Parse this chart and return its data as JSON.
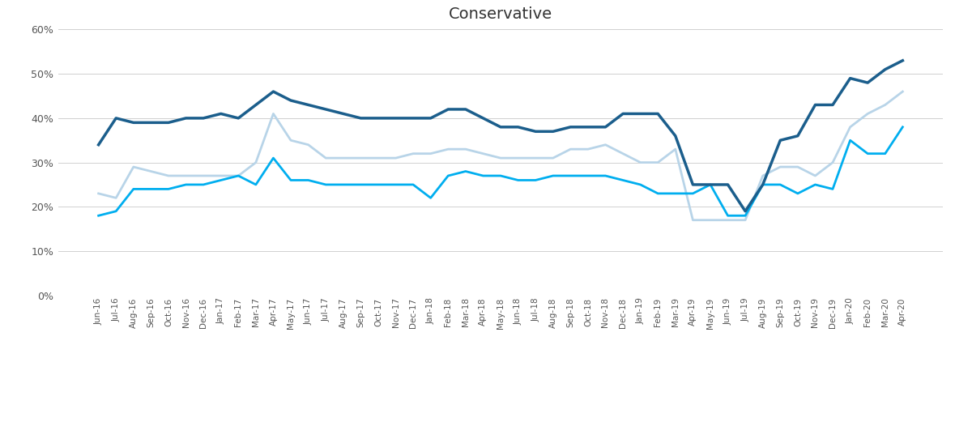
{
  "title": "Conservative",
  "labels": [
    "Jun-16",
    "Jul-16",
    "Aug-16",
    "Sep-16",
    "Oct-16",
    "Nov-16",
    "Dec-16",
    "Jan-17",
    "Feb-17",
    "Mar-17",
    "Apr-17",
    "May-17",
    "Jun-17",
    "Jul-17",
    "Aug-17",
    "Sep-17",
    "Oct-17",
    "Nov-17",
    "Dec-17",
    "Jan-18",
    "Feb-18",
    "Mar-18",
    "Apr-18",
    "May-18",
    "Jun-18",
    "Jul-18",
    "Aug-18",
    "Sep-18",
    "Oct-18",
    "Nov-18",
    "Dec-18",
    "Jan-19",
    "Feb-19",
    "Mar-19",
    "Apr-19",
    "May-19",
    "Jun-19",
    "Jul-19",
    "Aug-19",
    "Sep-19",
    "Oct-19",
    "Nov-19",
    "Dec-19",
    "Jan-20",
    "Feb-20",
    "Mar-20",
    "Apr-20"
  ],
  "uk_polling": [
    34,
    40,
    39,
    39,
    39,
    40,
    40,
    41,
    40,
    43,
    46,
    44,
    43,
    42,
    41,
    40,
    40,
    40,
    40,
    40,
    42,
    42,
    40,
    38,
    38,
    37,
    37,
    38,
    38,
    38,
    41,
    41,
    41,
    36,
    25,
    25,
    25,
    19,
    25,
    35,
    36,
    43,
    43,
    49,
    48,
    51,
    53
  ],
  "senedd_welsh": [
    18,
    19,
    24,
    24,
    24,
    25,
    25,
    26,
    27,
    25,
    31,
    26,
    26,
    25,
    25,
    25,
    25,
    25,
    25,
    22,
    27,
    28,
    27,
    27,
    26,
    26,
    27,
    27,
    27,
    27,
    26,
    25,
    23,
    23,
    23,
    25,
    18,
    18,
    25,
    25,
    23,
    25,
    24,
    35,
    32,
    32,
    38
  ],
  "westminster_welsh": [
    23,
    22,
    29,
    28,
    27,
    27,
    27,
    27,
    27,
    30,
    41,
    35,
    34,
    31,
    31,
    31,
    31,
    31,
    32,
    32,
    33,
    33,
    32,
    31,
    31,
    31,
    31,
    33,
    33,
    34,
    32,
    30,
    30,
    33,
    17,
    17,
    17,
    17,
    27,
    29,
    29,
    27,
    30,
    38,
    41,
    43,
    46
  ],
  "uk_color": "#1B5E8C",
  "senedd_color": "#00AEEF",
  "westminster_color": "#B8D4E8",
  "ylim": [
    0,
    60
  ],
  "yticks": [
    0,
    10,
    20,
    30,
    40,
    50,
    60
  ],
  "ytick_labels": [
    "0%",
    "10%",
    "20%",
    "30%",
    "40%",
    "50%",
    "60%"
  ],
  "background_color": "#ffffff",
  "grid_color": "#d0d0d0"
}
